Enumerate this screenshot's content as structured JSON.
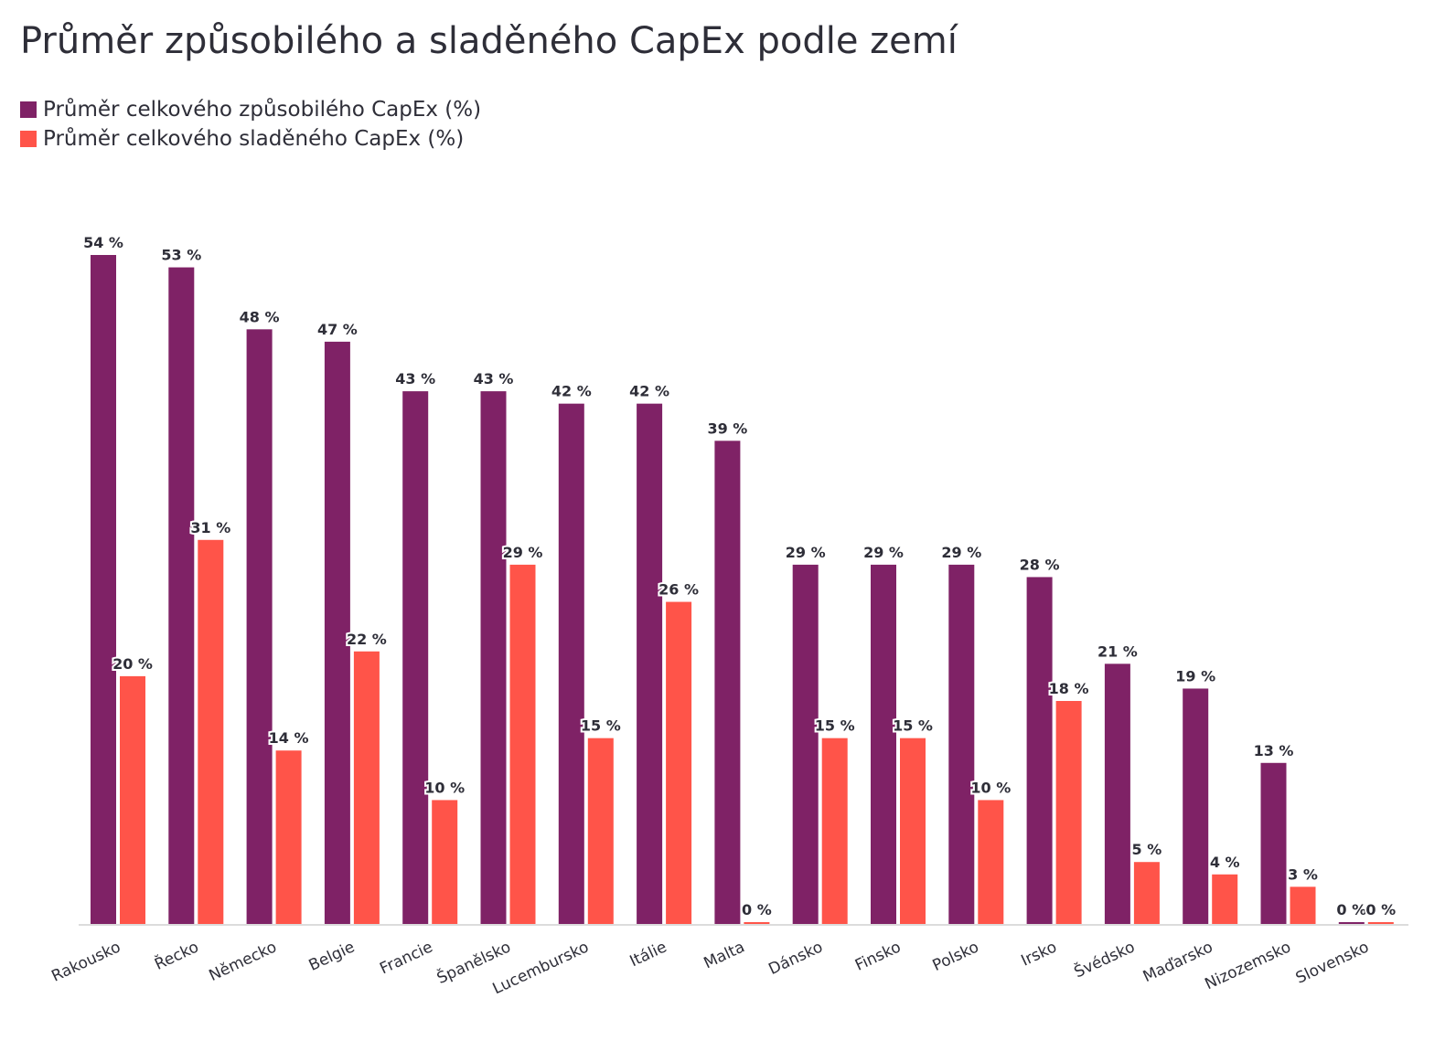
{
  "chart_data": {
    "type": "bar",
    "title": "Průměr způsobilého a sladěného CapEx podle zemí",
    "categories": [
      "Rakousko",
      "Řecko",
      "Německo",
      "Belgie",
      "Francie",
      "Španělsko",
      "Lucembursko",
      "Itálie",
      "Malta",
      "Dánsko",
      "Finsko",
      "Polsko",
      "Irsko",
      "Švédsko",
      "Maďarsko",
      "Nizozemsko",
      "Slovensko"
    ],
    "series": [
      {
        "name": "Průměr celkového způsobilého CapEx (%)",
        "color": "#7f2266",
        "values": [
          54,
          53,
          48,
          47,
          43,
          43,
          42,
          42,
          39,
          29,
          29,
          29,
          28,
          21,
          19,
          13,
          0
        ]
      },
      {
        "name": "Průměr celkového sladěného CapEx (%)",
        "color": "#ff5449",
        "values": [
          20,
          31,
          14,
          22,
          10,
          29,
          15,
          26,
          0,
          15,
          15,
          10,
          18,
          5,
          4,
          3,
          0
        ]
      }
    ],
    "value_suffix": " %",
    "ylim": [
      0,
      54
    ],
    "xlabel": "",
    "ylabel": "",
    "grid": false,
    "legend_position": "top-left"
  }
}
